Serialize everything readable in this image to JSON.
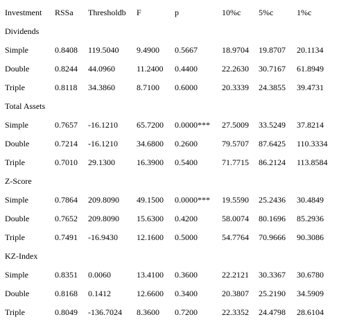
{
  "headers": [
    "Investment",
    "RSSa",
    "Thresholdb",
    "F",
    "p",
    "10%c",
    "5%c",
    "1%c"
  ],
  "sections": [
    {
      "title": "Dividends",
      "rows": [
        [
          "Simple",
          "0.8408",
          "119.5040",
          "9.4900",
          "0.5667",
          "18.9704",
          "19.8707",
          "20.1134"
        ],
        [
          "Double",
          "0.8244",
          "44.0960",
          "11.2400",
          "0.4400",
          "22.2630",
          "30.7167",
          "61.8949"
        ],
        [
          "Triple",
          "0.8118",
          "34.3860",
          "8.7100",
          "0.6000",
          "20.3339",
          "24.3855",
          "39.4731"
        ]
      ]
    },
    {
      "title": "Total Assets",
      "rows": [
        [
          "Simple",
          "0.7657",
          "-16.1210",
          "65.7200",
          "0.0000***",
          "27.5009",
          "33.5249",
          "37.8214"
        ],
        [
          "Double",
          "0.7214",
          "-16.1210",
          "34.6800",
          "0.2600",
          "79.5707",
          "87.6425",
          "110.3334"
        ],
        [
          "Triple",
          "0.7010",
          "29.1300",
          "16.3900",
          "0.5400",
          "71.7715",
          "86.2124",
          "113.8584"
        ]
      ]
    },
    {
      "title": "Z-Score",
      "rows": [
        [
          "Simple",
          "0.7864",
          "209.8090",
          "49.1500",
          "0.0000***",
          "19.5590",
          "25.2436",
          "30.4849"
        ],
        [
          "Double",
          "0.7652",
          "209.8090",
          "15.6300",
          "0.4200",
          "58.0074",
          "80.1696",
          "85.2936"
        ],
        [
          "Triple",
          "0.7491",
          "-16.9430",
          "12.1600",
          "0.5000",
          "54.7764",
          "70.9666",
          "90.3086"
        ]
      ]
    },
    {
      "title": "KZ-Index",
      "rows": [
        [
          "Simple",
          "0.8351",
          "0.0060",
          "13.4100",
          "0.3600",
          "22.2121",
          "30.3367",
          "30.6780"
        ],
        [
          "Double",
          "0.8168",
          "0.1412",
          "12.6600",
          "0.3400",
          "20.3807",
          "25.2190",
          "34.5909"
        ],
        [
          "Triple",
          "0.8049",
          "-136.7024",
          "8.3600",
          "0.7200",
          "22.3352",
          "24.4798",
          "28.6104"
        ]
      ]
    }
  ]
}
